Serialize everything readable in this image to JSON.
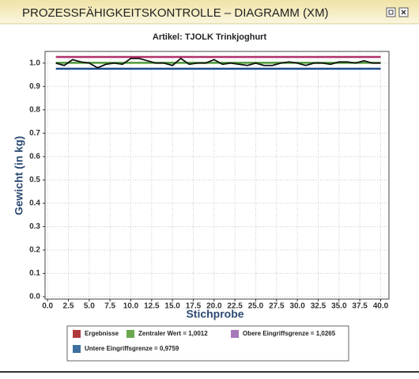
{
  "window": {
    "title": "PROZESSFÄHIGKEITSKONTROLLE – DIAGRAMM (XM)"
  },
  "chart_data": {
    "type": "line",
    "title": "Artikel: TJOLK Trinkjoghurt",
    "x_label": "Stichprobe",
    "y_label": "Gewicht (in kg)",
    "x": [
      1,
      2,
      3,
      4,
      5,
      6,
      7,
      8,
      9,
      10,
      11,
      12,
      13,
      14,
      15,
      16,
      17,
      18,
      19,
      20,
      21,
      22,
      23,
      24,
      25,
      26,
      27,
      28,
      29,
      30,
      31,
      32,
      33,
      34,
      35,
      36,
      37,
      38,
      39,
      40
    ],
    "series": [
      {
        "name": "Ergebnisse",
        "color": "#111111",
        "legend_color": "#b03a3a",
        "values": [
          1.0,
          0.99,
          1.015,
          1.005,
          1.0,
          0.98,
          0.995,
          1.0,
          0.995,
          1.02,
          1.02,
          1.01,
          1.0,
          1.0,
          0.99,
          1.02,
          0.995,
          1.0,
          1.0,
          1.015,
          0.995,
          1.0,
          0.995,
          0.99,
          1.0,
          0.99,
          0.99,
          1.0,
          1.005,
          1.0,
          0.99,
          1.0,
          1.0,
          0.995,
          1.005,
          1.005,
          1.0,
          1.01,
          1.0,
          1.0
        ]
      }
    ],
    "reference_lines": [
      {
        "name": "Zentraler Wert = 1,0012",
        "color": "#4f9a3c",
        "legend_color": "#6aa84f",
        "value": 1.0012
      },
      {
        "name": "Obere Eingriffsgrenze = 1,0265",
        "color": "#b0306a",
        "legend_color": "#a678b8",
        "value": 1.0265
      },
      {
        "name": "Untere Eingriffsgrenze = 0,9759",
        "color": "#1f4e8c",
        "legend_color": "#3d6fa0",
        "value": 0.9759
      }
    ],
    "xlim": [
      -0.3,
      41
    ],
    "ylim": [
      -0.01,
      1.05
    ],
    "xticks": [
      {
        "value": 0,
        "label": "0.0"
      },
      2.5,
      {
        "value": 5,
        "label": "5.0"
      },
      7.5,
      {
        "value": 10,
        "label": "10.0"
      },
      12.5,
      {
        "value": 15,
        "label": "15.0"
      },
      17.5,
      {
        "value": 20,
        "label": "20.0"
      },
      22.5,
      {
        "value": 25,
        "label": "25.0"
      },
      27.5,
      {
        "value": 30,
        "label": "30.0"
      },
      32.5,
      {
        "value": 35,
        "label": "35.0"
      },
      37.5,
      {
        "value": 40,
        "label": "40.0"
      }
    ],
    "yticks": [
      {
        "value": 0,
        "label": "0.0"
      },
      0.1,
      0.2,
      0.3,
      0.4,
      0.5,
      0.6,
      0.7,
      0.8,
      0.9,
      {
        "value": 1,
        "label": "1.0"
      }
    ],
    "grid": true
  }
}
